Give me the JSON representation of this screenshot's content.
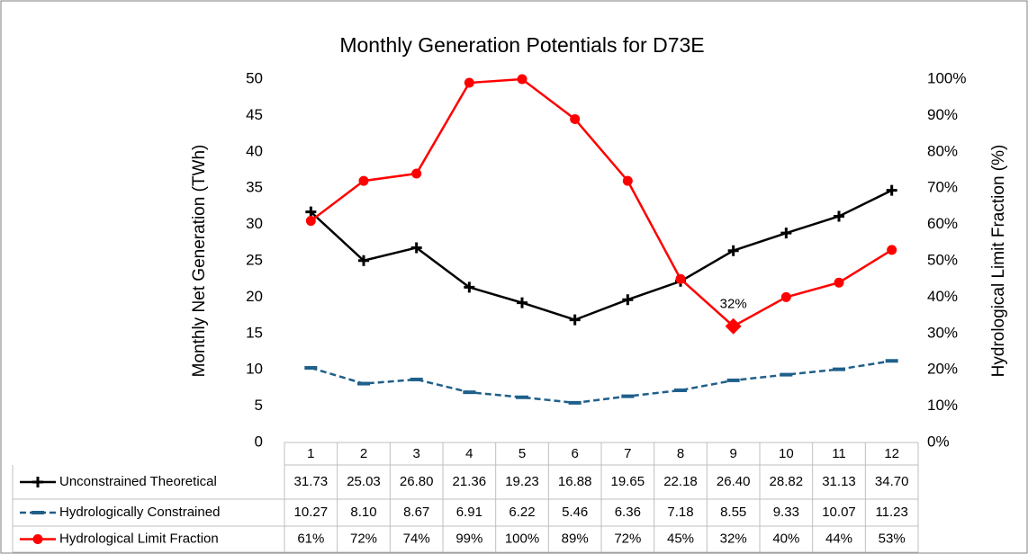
{
  "chart_data": {
    "type": "line",
    "title": "Monthly Generation Potentials for D73E",
    "y_label": "Monthly Net Generation (TWh)",
    "y2_label": "Hydrological Limit Fraction (%)",
    "categories": [
      "1",
      "2",
      "3",
      "4",
      "5",
      "6",
      "7",
      "8",
      "9",
      "10",
      "11",
      "12"
    ],
    "ylim": [
      0,
      50
    ],
    "yticks": [
      0,
      5,
      10,
      15,
      20,
      25,
      30,
      35,
      40,
      45,
      50
    ],
    "y2lim": [
      0,
      100
    ],
    "y2ticks": [
      {
        "value": 0,
        "label": "0%"
      },
      {
        "value": 10,
        "label": "10%"
      },
      {
        "value": 20,
        "label": "20%"
      },
      {
        "value": 30,
        "label": "30%"
      },
      {
        "value": 40,
        "label": "40%"
      },
      {
        "value": 50,
        "label": "50%"
      },
      {
        "value": 60,
        "label": "60%"
      },
      {
        "value": 70,
        "label": "70%"
      },
      {
        "value": 80,
        "label": "80%"
      },
      {
        "value": 90,
        "label": "90%"
      },
      {
        "value": 100,
        "label": "100%"
      }
    ],
    "highlight_index": 8,
    "series": [
      {
        "name": "Unconstrained Theoretical",
        "color": "#000000",
        "marker": "plus",
        "dash": false,
        "values": [
          31.73,
          25.03,
          26.8,
          21.36,
          19.23,
          16.88,
          19.65,
          22.18,
          26.4,
          28.82,
          31.13,
          34.7
        ],
        "value_labels": [
          "31.73",
          "25.03",
          "26.80",
          "21.36",
          "19.23",
          "16.88",
          "19.65",
          "22.18",
          "26.40",
          "28.82",
          "31.13",
          "34.70"
        ]
      },
      {
        "name": "Hydrologically Constrained",
        "color": "#1f5f8b",
        "marker": "dash",
        "dash": true,
        "values": [
          10.27,
          8.1,
          8.67,
          6.91,
          6.22,
          5.46,
          6.36,
          7.18,
          8.55,
          9.33,
          10.07,
          11.23
        ],
        "value_labels": [
          "10.27",
          "8.10",
          "8.67",
          "6.91",
          "6.22",
          "5.46",
          "6.36",
          "7.18",
          "8.55",
          "9.33",
          "10.07",
          "11.23"
        ]
      },
      {
        "name": "Hydrological Limit Fraction",
        "color": "#ff0000",
        "marker": "circle",
        "dash": false,
        "axis": "y2",
        "values": [
          61,
          72,
          74,
          99,
          100,
          89,
          72,
          45,
          32,
          40,
          44,
          53
        ],
        "value_labels": [
          "61%",
          "72%",
          "74%",
          "99%",
          "100%",
          "89%",
          "72%",
          "45%",
          "32%",
          "40%",
          "44%",
          "53%"
        ]
      }
    ]
  }
}
